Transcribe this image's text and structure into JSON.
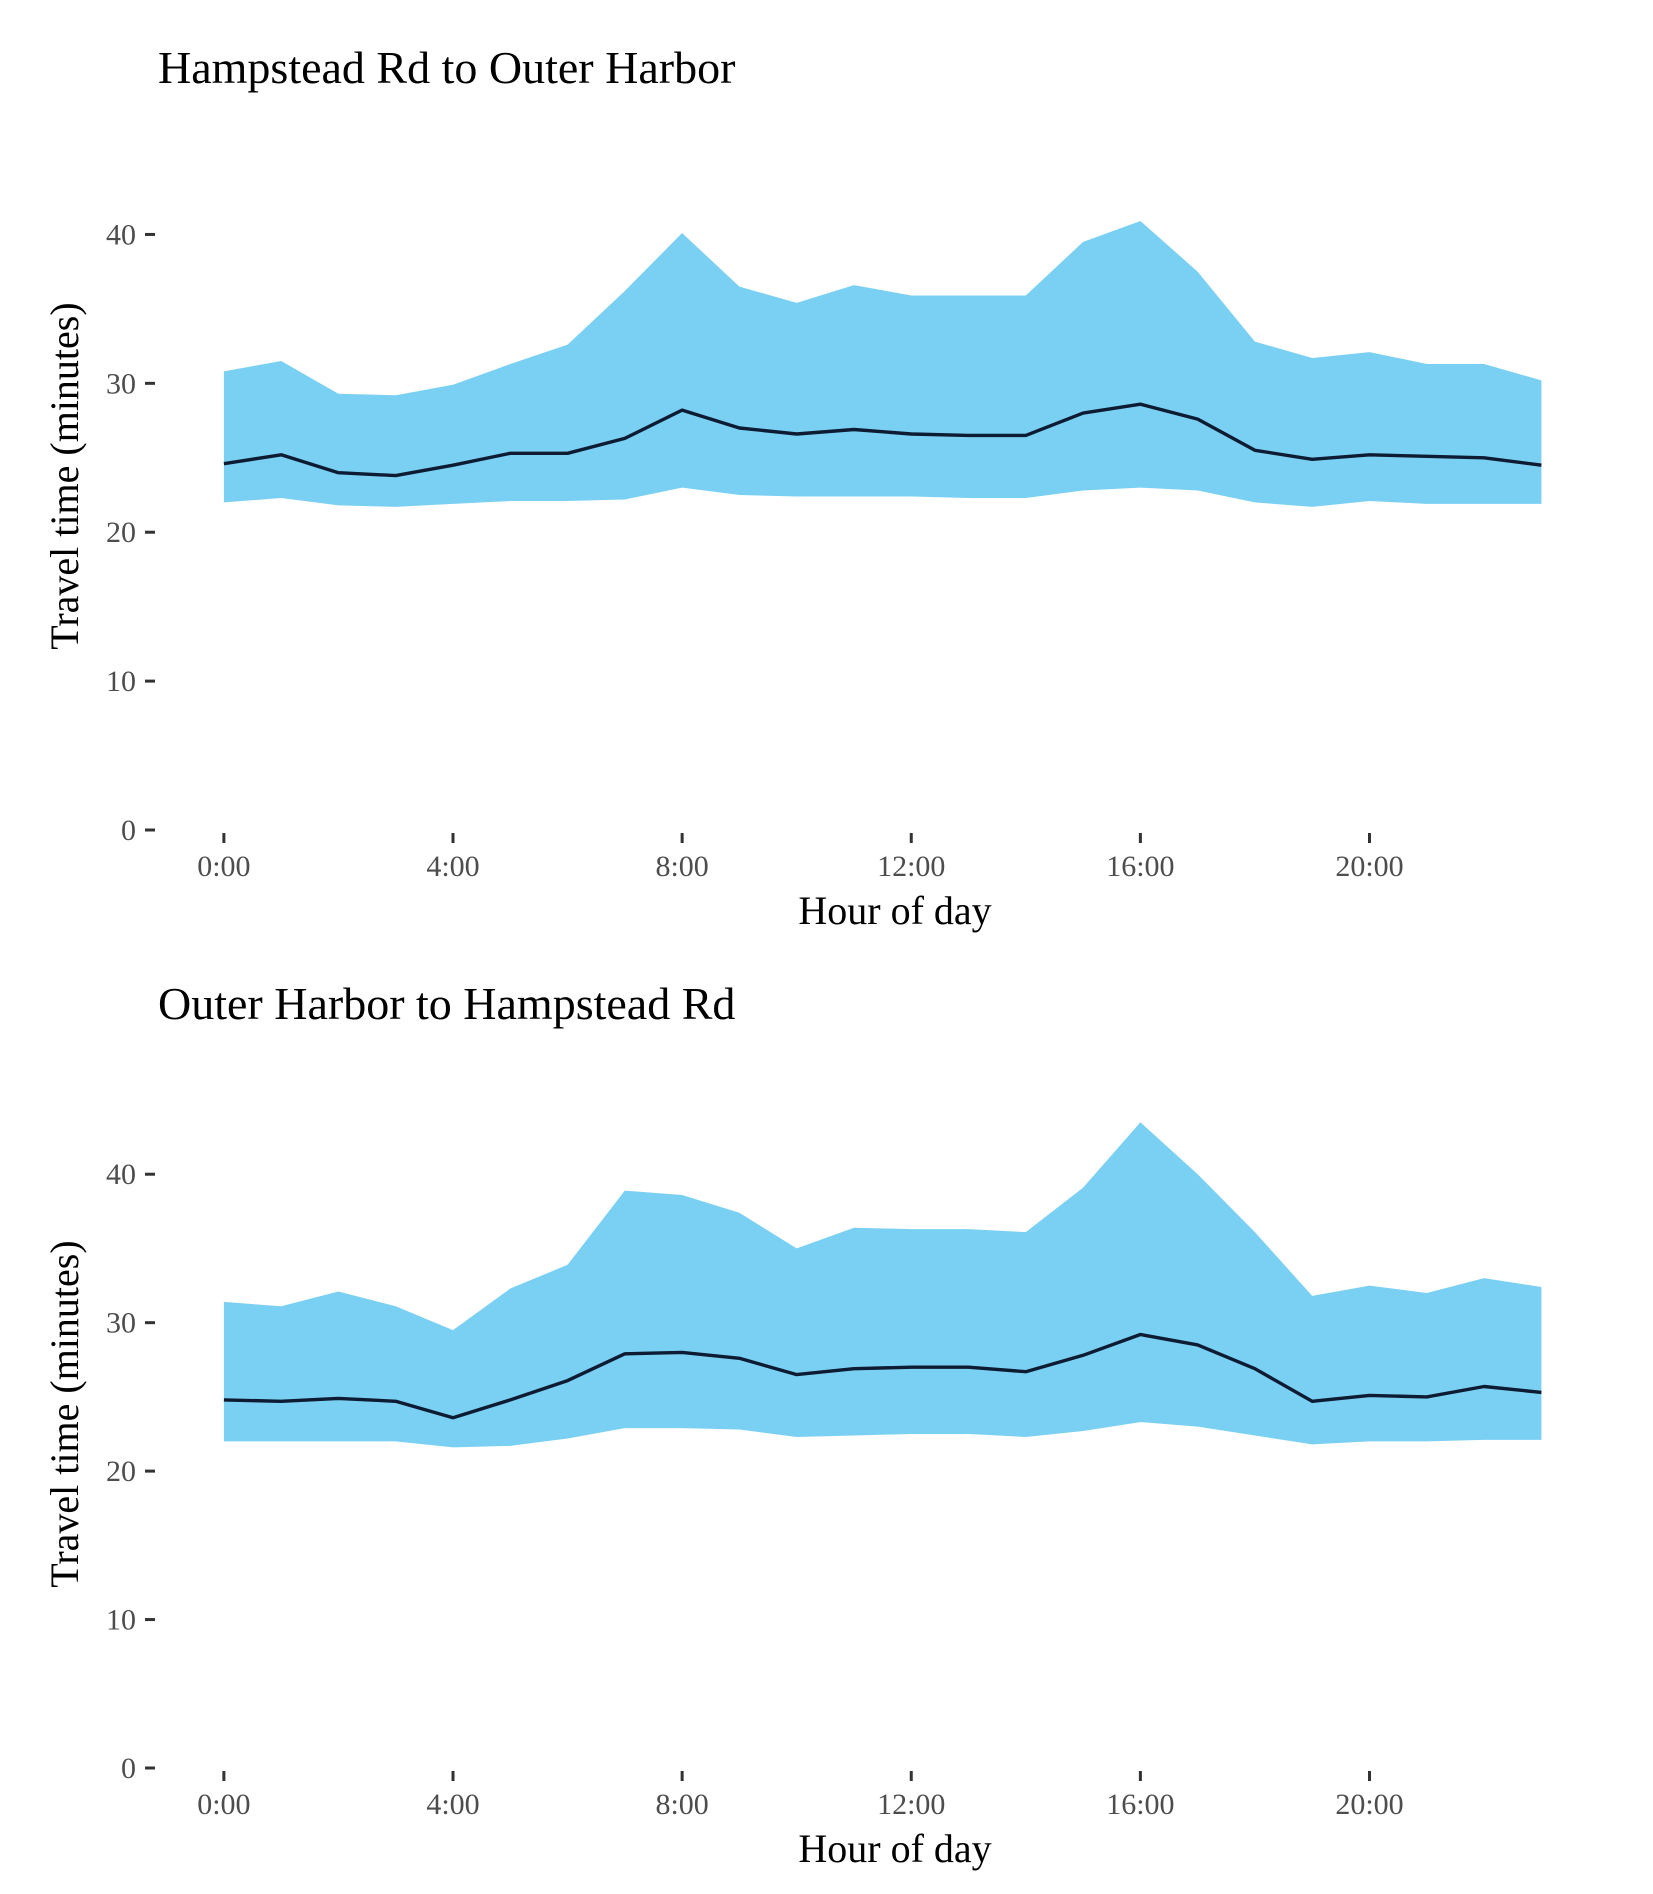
{
  "colors": {
    "band": "#7ad0f3",
    "line": "#0d1b33",
    "tick": "#333333",
    "tick_label": "#4d4d4d"
  },
  "chart_data": [
    {
      "type": "area",
      "title": "Hampstead Rd to Outer Harbor",
      "xlabel": "Hour of day",
      "ylabel": "Travel time (minutes)",
      "x_ticks": [
        0,
        4,
        8,
        12,
        16,
        20
      ],
      "x_tick_labels": [
        "0:00",
        "4:00",
        "8:00",
        "12:00",
        "16:00",
        "20:00"
      ],
      "y_ticks": [
        0,
        10,
        20,
        30,
        40
      ],
      "y_tick_labels": [
        "0",
        "10",
        "20",
        "30",
        "40"
      ],
      "xlim": [
        -1.15,
        23.5
      ],
      "ylim": [
        0,
        45
      ],
      "grid": false,
      "x": [
        0,
        1,
        2,
        3,
        4,
        5,
        6,
        7,
        8,
        9,
        10,
        11,
        12,
        13,
        14,
        15,
        16,
        17,
        18,
        19,
        20,
        21,
        22,
        23
      ],
      "series": [
        {
          "kind": "line",
          "values": [
            24.6,
            25.2,
            24.0,
            23.8,
            24.5,
            25.3,
            25.3,
            26.3,
            28.2,
            27.0,
            26.6,
            26.9,
            26.6,
            26.5,
            26.5,
            28.0,
            28.6,
            27.6,
            25.5,
            24.9,
            25.2,
            25.1,
            25.0,
            24.5
          ]
        },
        {
          "kind": "band_upper",
          "values": [
            30.8,
            31.5,
            29.3,
            29.2,
            29.9,
            31.3,
            32.6,
            36.2,
            40.1,
            36.5,
            35.4,
            36.6,
            35.9,
            35.9,
            35.9,
            39.5,
            40.9,
            37.5,
            32.8,
            31.7,
            32.1,
            31.3,
            31.3,
            30.2
          ]
        },
        {
          "kind": "band_lower",
          "values": [
            22.0,
            22.3,
            21.8,
            21.7,
            21.9,
            22.1,
            22.1,
            22.2,
            23.0,
            22.5,
            22.4,
            22.4,
            22.4,
            22.3,
            22.3,
            22.8,
            23.0,
            22.8,
            22.0,
            21.7,
            22.1,
            21.9,
            21.9,
            21.9
          ]
        }
      ]
    },
    {
      "type": "area",
      "title": "Outer Harbor to Hampstead Rd",
      "xlabel": "Hour of day",
      "ylabel": "Travel time (minutes)",
      "x_ticks": [
        0,
        4,
        8,
        12,
        16,
        20
      ],
      "x_tick_labels": [
        "0:00",
        "4:00",
        "8:00",
        "12:00",
        "16:00",
        "20:00"
      ],
      "y_ticks": [
        0,
        10,
        20,
        30,
        40
      ],
      "y_tick_labels": [
        "0",
        "10",
        "20",
        "30",
        "40"
      ],
      "xlim": [
        -1.15,
        23.5
      ],
      "ylim": [
        0,
        45
      ],
      "grid": false,
      "x": [
        0,
        1,
        2,
        3,
        4,
        5,
        6,
        7,
        8,
        9,
        10,
        11,
        12,
        13,
        14,
        15,
        16,
        17,
        18,
        19,
        20,
        21,
        22,
        23
      ],
      "series": [
        {
          "kind": "line",
          "values": [
            24.8,
            24.7,
            24.9,
            24.7,
            23.6,
            24.8,
            26.1,
            27.9,
            28.0,
            27.6,
            26.5,
            26.9,
            27.0,
            27.0,
            26.7,
            27.8,
            29.2,
            28.5,
            26.9,
            24.7,
            25.1,
            25.0,
            25.7,
            25.3
          ]
        },
        {
          "kind": "band_upper",
          "values": [
            31.4,
            31.1,
            32.1,
            31.1,
            29.5,
            32.3,
            33.9,
            38.9,
            38.6,
            37.4,
            35.0,
            36.4,
            36.3,
            36.3,
            36.1,
            39.1,
            43.5,
            40.0,
            36.1,
            31.8,
            32.5,
            32.0,
            33.0,
            32.4
          ]
        },
        {
          "kind": "band_lower",
          "values": [
            22.0,
            22.0,
            22.0,
            22.0,
            21.6,
            21.7,
            22.2,
            22.9,
            22.9,
            22.8,
            22.3,
            22.4,
            22.5,
            22.5,
            22.3,
            22.7,
            23.3,
            23.0,
            22.4,
            21.8,
            22.0,
            22.0,
            22.1,
            22.1
          ]
        }
      ]
    }
  ]
}
